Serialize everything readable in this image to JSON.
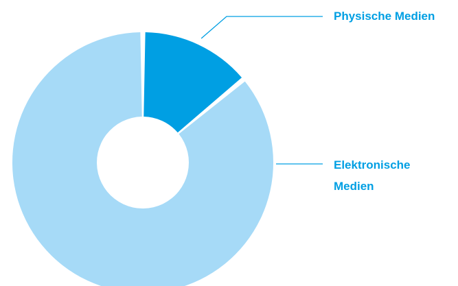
{
  "chart_data": {
    "type": "pie",
    "donut": true,
    "categories": [
      "Physische Medien",
      "Elektronische Medien"
    ],
    "values": [
      14,
      86
    ],
    "colors": [
      "#009fe3",
      "#a6daf7"
    ],
    "label_color": "#009fe3",
    "leader_color": "#009fe3",
    "legend": "right"
  }
}
